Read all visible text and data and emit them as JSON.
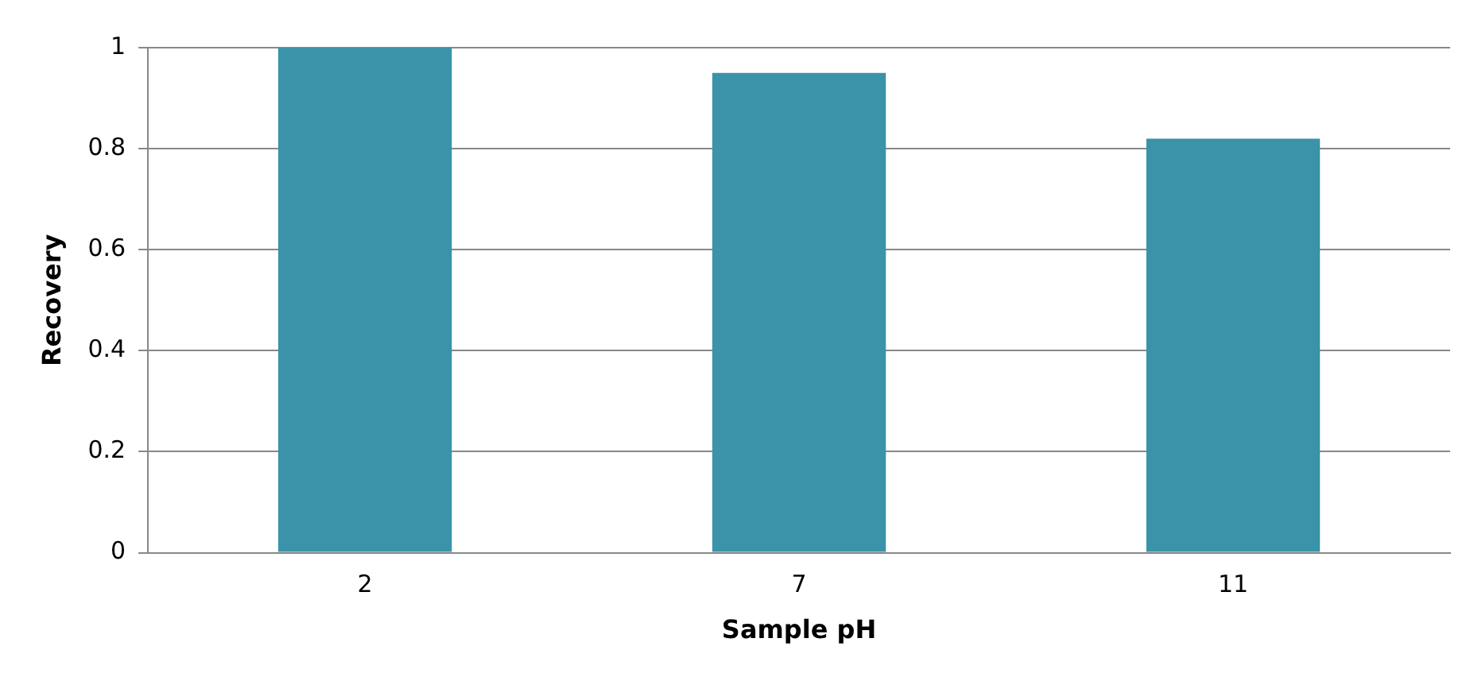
{
  "chart_data": {
    "type": "bar",
    "xlabel": "Sample pH",
    "ylabel": "Recovery",
    "categories": [
      "2",
      "7",
      "11"
    ],
    "values": [
      1,
      0.95,
      0.82
    ],
    "color": "#3a93a9",
    "ylim": [
      0,
      1
    ],
    "yticks": [
      0,
      0.2,
      0.4,
      0.6,
      0.8,
      1
    ],
    "grid": "y",
    "legend": false
  }
}
